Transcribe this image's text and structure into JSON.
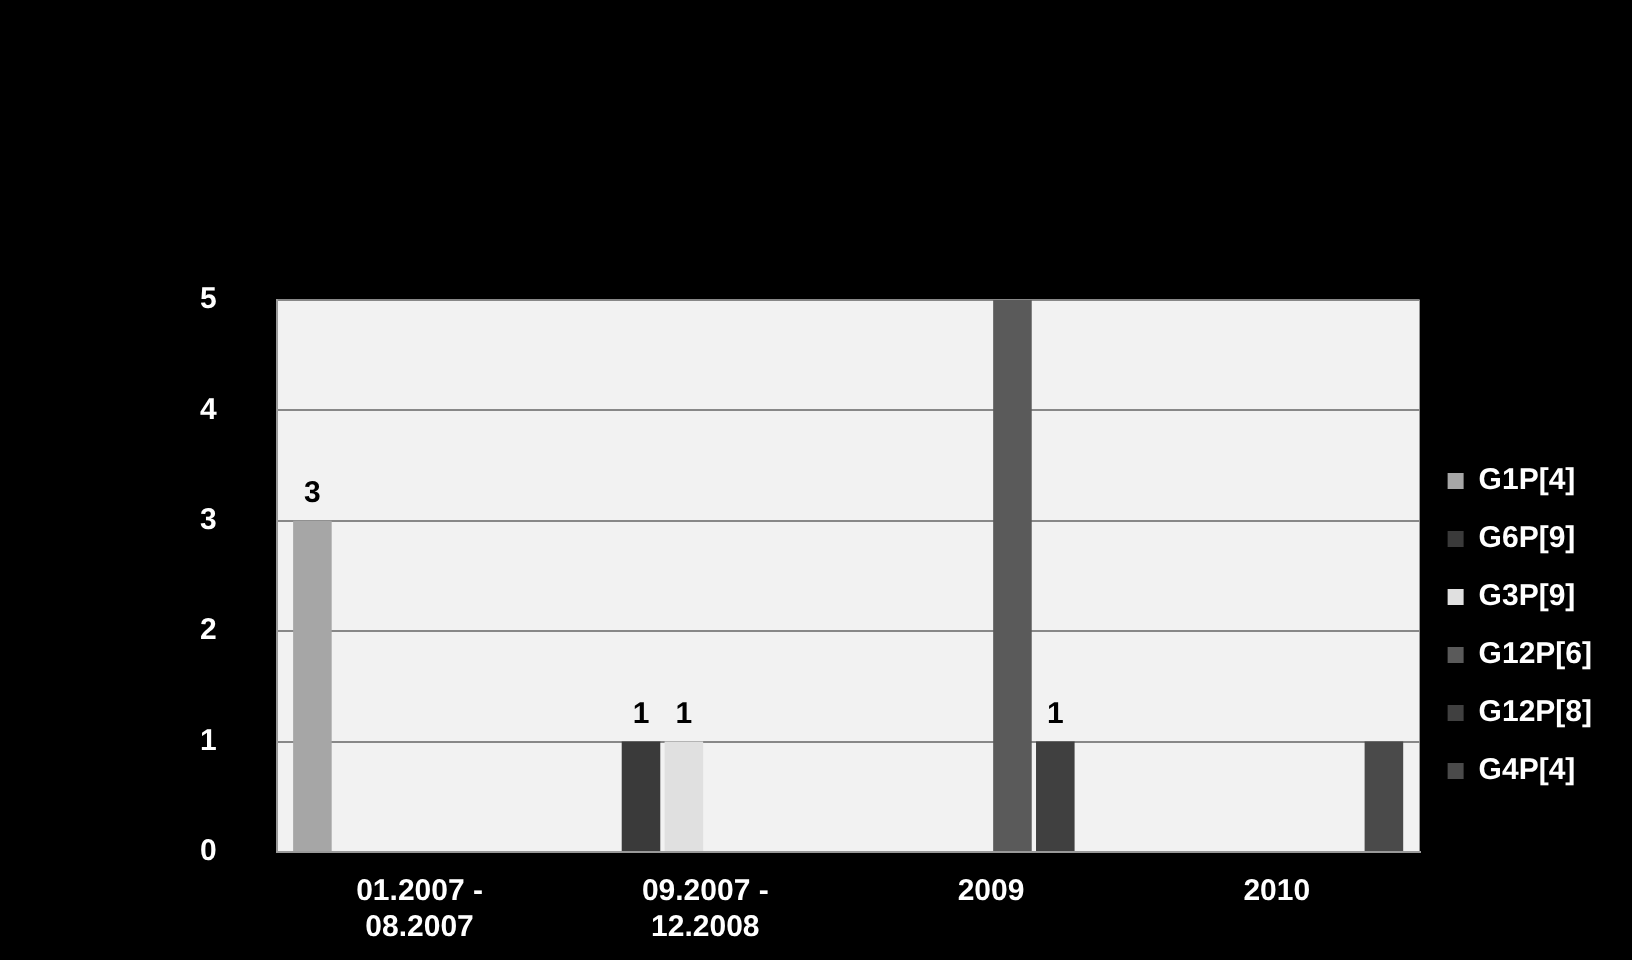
{
  "chart_data": {
    "type": "bar",
    "categories": [
      "01.2007 - 08.2007",
      "09.2007 - 12.2008",
      "2009",
      "2010"
    ],
    "series": [
      {
        "name": "G1P[4]",
        "color": "#a6a6a6",
        "values": [
          3,
          null,
          null,
          null
        ],
        "value_labels": [
          "3",
          null,
          null,
          null
        ]
      },
      {
        "name": "G6P[9]",
        "color": "#3a3a3a",
        "values": [
          null,
          1,
          null,
          null
        ],
        "value_labels": [
          null,
          "1",
          null,
          null
        ]
      },
      {
        "name": "G3P[9]",
        "color": "#e0e0e0",
        "values": [
          null,
          1,
          null,
          null
        ],
        "value_labels": [
          null,
          "1",
          null,
          null
        ]
      },
      {
        "name": "G12P[6]",
        "color": "#5a5a5a",
        "values": [
          null,
          null,
          5,
          null
        ],
        "value_labels": [
          null,
          null,
          null,
          null
        ]
      },
      {
        "name": "G12P[8]",
        "color": "#404040",
        "values": [
          null,
          null,
          1,
          null
        ],
        "value_labels": [
          null,
          null,
          "1",
          null
        ]
      },
      {
        "name": "G4P[4]",
        "color": "#4a4a4a",
        "values": [
          null,
          null,
          null,
          1
        ],
        "value_labels": [
          null,
          null,
          null,
          null
        ]
      }
    ],
    "ylim": [
      0,
      5
    ],
    "yticks": [
      0,
      1,
      2,
      3,
      4,
      5
    ],
    "grid": "y",
    "legend": "right"
  }
}
